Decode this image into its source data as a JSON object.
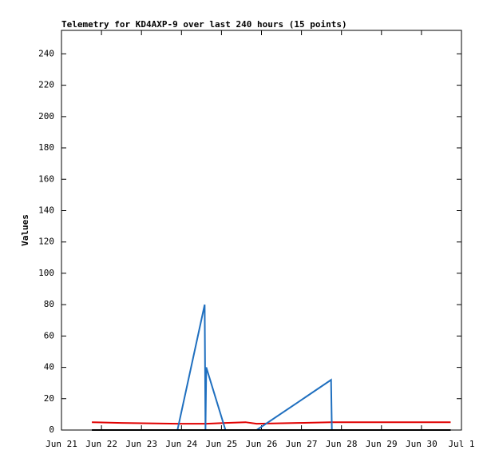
{
  "chart_data": {
    "type": "line",
    "title": "Telemetry for KD4AXP-9 over last 240 hours (15 points)",
    "y_label": "Values",
    "x": [
      21.76,
      22.5,
      23.9,
      24.58,
      24.6,
      24.62,
      25.1,
      25.6,
      25.88,
      26.9,
      27.74,
      27.76,
      28.2,
      29.5,
      30.73
    ],
    "series": [
      {
        "name": "red",
        "color": "#e00000",
        "values": [
          5,
          4.5,
          4,
          4,
          4,
          4,
          4.5,
          5,
          4,
          4.5,
          5,
          5,
          5,
          5,
          5
        ]
      },
      {
        "name": "blue",
        "color": "#1f6fbf",
        "values": [
          0,
          0,
          0,
          80,
          0,
          40,
          0,
          0,
          0,
          17.5,
          32,
          0,
          0,
          0,
          0
        ]
      },
      {
        "name": "black",
        "color": "#000000",
        "values": [
          0,
          0,
          0,
          0,
          0,
          0,
          0,
          0,
          0,
          0,
          0,
          0,
          0,
          0,
          0
        ]
      }
    ],
    "xlim": [
      21,
      31
    ],
    "xticks": [
      {
        "value": 21,
        "label": "Jun 21"
      },
      {
        "value": 22,
        "label": "Jun 22"
      },
      {
        "value": 23,
        "label": "Jun 23"
      },
      {
        "value": 24,
        "label": "Jun 24"
      },
      {
        "value": 25,
        "label": "Jun 25"
      },
      {
        "value": 26,
        "label": "Jun 26"
      },
      {
        "value": 27,
        "label": "Jun 27"
      },
      {
        "value": 28,
        "label": "Jun 28"
      },
      {
        "value": 29,
        "label": "Jun 29"
      },
      {
        "value": 30,
        "label": "Jun 30"
      },
      {
        "value": 31,
        "label": "Jul 1"
      }
    ],
    "ylim": [
      0,
      255
    ],
    "yticks": [
      0,
      20,
      40,
      60,
      80,
      100,
      120,
      140,
      160,
      180,
      200,
      220,
      240
    ]
  }
}
